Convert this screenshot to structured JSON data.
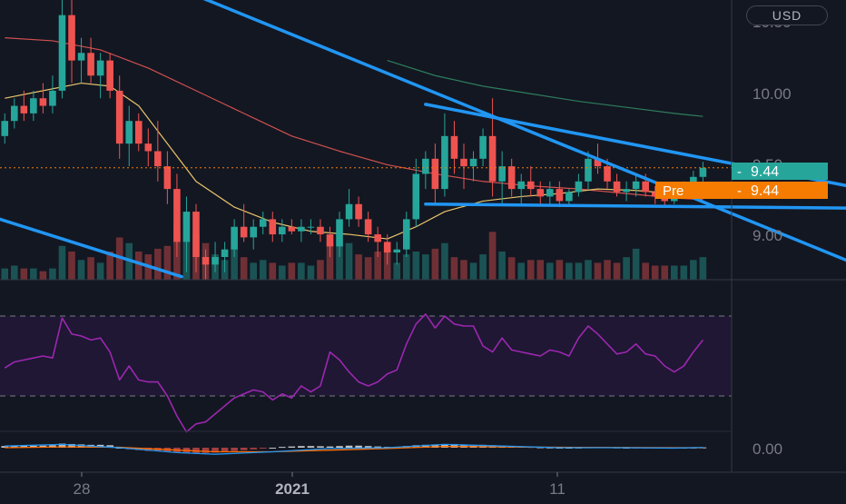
{
  "currency_button": "USD",
  "price_axis": {
    "top_partial_label": "10.50",
    "labels": [
      "10.00",
      "9.50",
      "9.00"
    ],
    "label_values": [
      10.0,
      9.5,
      9.0
    ]
  },
  "last_price_tag": {
    "label": "9.44",
    "value": 9.44,
    "color": "#26a69a"
  },
  "premarket_tag": {
    "prefix": "Pre",
    "label": "9.44",
    "color": "#f57c00"
  },
  "macd_axis_label": "0.00",
  "time_axis": {
    "labels": [
      "28",
      "2021",
      "11"
    ]
  },
  "colors": {
    "background": "#131722",
    "up": "#26a69a",
    "down": "#ef5350",
    "trendline": "#2196f3",
    "sma_fast": "#e9c46a",
    "sma_mid": "#d05050",
    "sma_slow": "#2e7d5b",
    "rsi_line": "#9c27b0",
    "rsi_band": "#1f1733",
    "macd_line": "#2196f3",
    "signal_line": "#ff6d00"
  },
  "chart_data": {
    "type": "candlestick",
    "ylim": [
      8.7,
      10.55
    ],
    "x_index_range": [
      -0.5,
      76
    ],
    "candles": [
      [
        9.65,
        9.8,
        9.6,
        9.75
      ],
      [
        9.75,
        9.9,
        9.7,
        9.85
      ],
      [
        9.85,
        9.95,
        9.75,
        9.8
      ],
      [
        9.8,
        9.95,
        9.75,
        9.9
      ],
      [
        9.9,
        10.0,
        9.8,
        9.85
      ],
      [
        9.85,
        10.05,
        9.8,
        9.95
      ],
      [
        9.95,
        10.9,
        9.9,
        10.45
      ],
      [
        10.45,
        10.55,
        10.0,
        10.15
      ],
      [
        10.15,
        10.3,
        10.0,
        10.2
      ],
      [
        10.2,
        10.3,
        10.0,
        10.05
      ],
      [
        10.05,
        10.2,
        9.9,
        10.15
      ],
      [
        10.15,
        10.2,
        9.9,
        9.95
      ],
      [
        9.95,
        10.05,
        9.5,
        9.6
      ],
      [
        9.6,
        9.85,
        9.45,
        9.75
      ],
      [
        9.75,
        9.8,
        9.55,
        9.6
      ],
      [
        9.6,
        9.7,
        9.45,
        9.55
      ],
      [
        9.55,
        9.75,
        9.35,
        9.45
      ],
      [
        9.45,
        9.55,
        9.2,
        9.3
      ],
      [
        9.3,
        9.4,
        8.85,
        8.95
      ],
      [
        8.95,
        9.25,
        8.75,
        9.15
      ],
      [
        9.15,
        9.2,
        8.75,
        8.85
      ],
      [
        8.85,
        8.9,
        8.7,
        8.8
      ],
      [
        8.8,
        8.95,
        8.75,
        8.85
      ],
      [
        8.85,
        8.95,
        8.75,
        8.9
      ],
      [
        8.9,
        9.1,
        8.85,
        9.05
      ],
      [
        9.05,
        9.2,
        8.95,
        8.98
      ],
      [
        8.98,
        9.1,
        8.9,
        9.05
      ],
      [
        9.05,
        9.15,
        9.0,
        9.1
      ],
      [
        9.1,
        9.15,
        8.95,
        9.0
      ],
      [
        9.0,
        9.1,
        8.95,
        9.05
      ],
      [
        9.05,
        9.1,
        9.0,
        9.02
      ],
      [
        9.02,
        9.1,
        8.95,
        9.05
      ],
      [
        9.05,
        9.1,
        9.0,
        9.05
      ],
      [
        9.05,
        9.1,
        8.95,
        9.0
      ],
      [
        9.0,
        9.05,
        8.85,
        8.92
      ],
      [
        8.92,
        9.15,
        8.85,
        9.1
      ],
      [
        9.1,
        9.3,
        9.05,
        9.2
      ],
      [
        9.2,
        9.25,
        9.05,
        9.1
      ],
      [
        9.1,
        9.15,
        8.95,
        9.0
      ],
      [
        9.0,
        9.05,
        8.85,
        8.95
      ],
      [
        8.95,
        9.0,
        8.8,
        8.88
      ],
      [
        8.88,
        8.95,
        8.8,
        8.9
      ],
      [
        8.9,
        9.15,
        8.85,
        9.1
      ],
      [
        9.1,
        9.5,
        9.05,
        9.4
      ],
      [
        9.4,
        9.55,
        9.3,
        9.5
      ],
      [
        9.5,
        9.6,
        9.2,
        9.3
      ],
      [
        9.3,
        9.8,
        9.25,
        9.65
      ],
      [
        9.65,
        9.75,
        9.4,
        9.5
      ],
      [
        9.5,
        9.6,
        9.3,
        9.45
      ],
      [
        9.45,
        9.55,
        9.35,
        9.5
      ],
      [
        9.5,
        9.7,
        9.45,
        9.65
      ],
      [
        9.65,
        9.9,
        9.25,
        9.35
      ],
      [
        9.35,
        9.55,
        9.2,
        9.45
      ],
      [
        9.45,
        9.5,
        9.25,
        9.3
      ],
      [
        9.3,
        9.4,
        9.2,
        9.35
      ],
      [
        9.35,
        9.45,
        9.25,
        9.3
      ],
      [
        9.3,
        9.35,
        9.2,
        9.25
      ],
      [
        9.25,
        9.35,
        9.2,
        9.3
      ],
      [
        9.3,
        9.35,
        9.18,
        9.22
      ],
      [
        9.22,
        9.3,
        9.2,
        9.28
      ],
      [
        9.28,
        9.4,
        9.25,
        9.35
      ],
      [
        9.35,
        9.55,
        9.3,
        9.5
      ],
      [
        9.5,
        9.6,
        9.4,
        9.45
      ],
      [
        9.45,
        9.5,
        9.3,
        9.35
      ],
      [
        9.35,
        9.4,
        9.25,
        9.28
      ],
      [
        9.28,
        9.35,
        9.22,
        9.3
      ],
      [
        9.3,
        9.4,
        9.25,
        9.35
      ],
      [
        9.35,
        9.4,
        9.25,
        9.28
      ],
      [
        9.28,
        9.32,
        9.2,
        9.25
      ],
      [
        9.25,
        9.3,
        9.18,
        9.22
      ],
      [
        9.22,
        9.3,
        9.2,
        9.28
      ],
      [
        9.28,
        9.35,
        9.25,
        9.3
      ],
      [
        9.3,
        9.42,
        9.28,
        9.38
      ],
      [
        9.38,
        9.48,
        9.35,
        9.44
      ]
    ],
    "volume_fraction": [
      0.2,
      0.25,
      0.2,
      0.2,
      0.15,
      0.2,
      0.6,
      0.5,
      0.35,
      0.4,
      0.3,
      0.5,
      0.75,
      0.65,
      0.5,
      0.45,
      0.55,
      0.6,
      0.95,
      0.7,
      0.8,
      0.65,
      0.45,
      0.35,
      0.55,
      0.4,
      0.3,
      0.35,
      0.3,
      0.25,
      0.3,
      0.3,
      0.25,
      0.35,
      0.7,
      0.6,
      0.65,
      0.45,
      0.4,
      0.5,
      0.6,
      0.3,
      0.45,
      0.5,
      0.45,
      0.55,
      0.65,
      0.4,
      0.35,
      0.3,
      0.45,
      0.85,
      0.5,
      0.4,
      0.3,
      0.35,
      0.35,
      0.3,
      0.35,
      0.3,
      0.3,
      0.35,
      0.3,
      0.35,
      0.3,
      0.4,
      0.55,
      0.3,
      0.25,
      0.25,
      0.25,
      0.25,
      0.35,
      0.4
    ],
    "sma_fast": [
      [
        0,
        9.9
      ],
      [
        4,
        9.95
      ],
      [
        8,
        10.0
      ],
      [
        11,
        9.98
      ],
      [
        14,
        9.85
      ],
      [
        17,
        9.6
      ],
      [
        20,
        9.35
      ],
      [
        24,
        9.18
      ],
      [
        28,
        9.08
      ],
      [
        32,
        9.02
      ],
      [
        36,
        9.0
      ],
      [
        40,
        8.97
      ],
      [
        43,
        9.05
      ],
      [
        46,
        9.15
      ],
      [
        50,
        9.22
      ],
      [
        54,
        9.25
      ],
      [
        58,
        9.27
      ],
      [
        62,
        9.3
      ],
      [
        66,
        9.29
      ],
      [
        70,
        9.27
      ],
      [
        73,
        9.28
      ]
    ],
    "sma_mid": [
      [
        0,
        10.3
      ],
      [
        5,
        10.28
      ],
      [
        10,
        10.22
      ],
      [
        15,
        10.1
      ],
      [
        20,
        9.95
      ],
      [
        25,
        9.8
      ],
      [
        30,
        9.65
      ],
      [
        35,
        9.55
      ],
      [
        40,
        9.46
      ],
      [
        45,
        9.4
      ],
      [
        50,
        9.35
      ],
      [
        55,
        9.32
      ],
      [
        60,
        9.3
      ],
      [
        65,
        9.27
      ],
      [
        70,
        9.24
      ],
      [
        73,
        9.23
      ]
    ],
    "sma_slow": [
      [
        40,
        10.15
      ],
      [
        45,
        10.05
      ],
      [
        50,
        9.98
      ],
      [
        55,
        9.93
      ],
      [
        60,
        9.88
      ],
      [
        65,
        9.84
      ],
      [
        70,
        9.8
      ],
      [
        73,
        9.78
      ]
    ],
    "trendlines": [
      [
        [
          20,
          10.58
        ],
        [
          93,
          8.7
        ]
      ],
      [
        [
          -0.5,
          9.1
        ],
        [
          18.5,
          8.72
        ]
      ],
      [
        [
          44,
          9.86
        ],
        [
          98,
          9.2
        ]
      ],
      [
        [
          44,
          9.2
        ],
        [
          94,
          9.17
        ]
      ]
    ],
    "rsi": [
      44,
      47,
      48,
      49,
      50,
      49,
      69,
      61,
      60,
      58,
      59,
      52,
      38,
      45,
      38,
      37,
      37,
      30,
      20,
      12,
      16,
      17,
      21,
      25,
      29,
      31,
      33,
      32,
      28,
      31,
      29,
      35,
      32,
      35,
      52,
      48,
      42,
      37,
      35,
      37,
      41,
      43,
      56,
      66,
      71,
      64,
      70,
      66,
      65,
      65,
      55,
      52,
      59,
      53,
      52,
      51,
      50,
      53,
      52,
      50,
      59,
      65,
      61,
      56,
      51,
      52,
      56,
      51,
      50,
      45,
      42,
      45,
      52,
      58
    ],
    "macd_histogram": [
      0.02,
      0.02,
      0.025,
      0.025,
      0.025,
      0.03,
      0.05,
      0.045,
      0.04,
      0.035,
      0.035,
      0.03,
      0.0,
      -0.02,
      -0.03,
      -0.04,
      -0.045,
      -0.05,
      -0.06,
      -0.065,
      -0.07,
      -0.065,
      -0.06,
      -0.05,
      -0.04,
      -0.03,
      -0.02,
      -0.01,
      0.0,
      0.01,
      0.015,
      0.02,
      0.02,
      0.018,
      0.015,
      0.02,
      0.025,
      0.025,
      0.02,
      0.015,
      0.01,
      0.01,
      0.02,
      0.03,
      0.035,
      0.04,
      0.045,
      0.045,
      0.04,
      0.035,
      0.035,
      0.03,
      0.025,
      0.02,
      0.015,
      0.01,
      0.005,
      0.002,
      0.0,
      0.0,
      0.002,
      0.005,
      0.008,
      0.006,
      0.003,
      0.0,
      -0.002,
      -0.003,
      -0.004,
      -0.003,
      -0.002,
      0.0,
      0.002,
      0.004
    ],
    "macd_line": [
      [
        0,
        0.02
      ],
      [
        6,
        0.04
      ],
      [
        12,
        0.0
      ],
      [
        18,
        -0.06
      ],
      [
        22,
        -0.08
      ],
      [
        28,
        -0.05
      ],
      [
        34,
        -0.01
      ],
      [
        40,
        0.0
      ],
      [
        46,
        0.04
      ],
      [
        52,
        0.02
      ],
      [
        58,
        0.0
      ],
      [
        64,
        0.0
      ],
      [
        70,
        -0.005
      ],
      [
        73,
        0.003
      ]
    ],
    "signal_line": [
      [
        0,
        0.0
      ],
      [
        6,
        0.01
      ],
      [
        12,
        0.005
      ],
      [
        18,
        -0.03
      ],
      [
        22,
        -0.05
      ],
      [
        28,
        -0.05
      ],
      [
        34,
        -0.03
      ],
      [
        40,
        -0.01
      ],
      [
        46,
        0.015
      ],
      [
        52,
        0.01
      ],
      [
        58,
        0.005
      ],
      [
        64,
        0.003
      ],
      [
        70,
        0.0
      ],
      [
        73,
        0.0
      ]
    ]
  }
}
